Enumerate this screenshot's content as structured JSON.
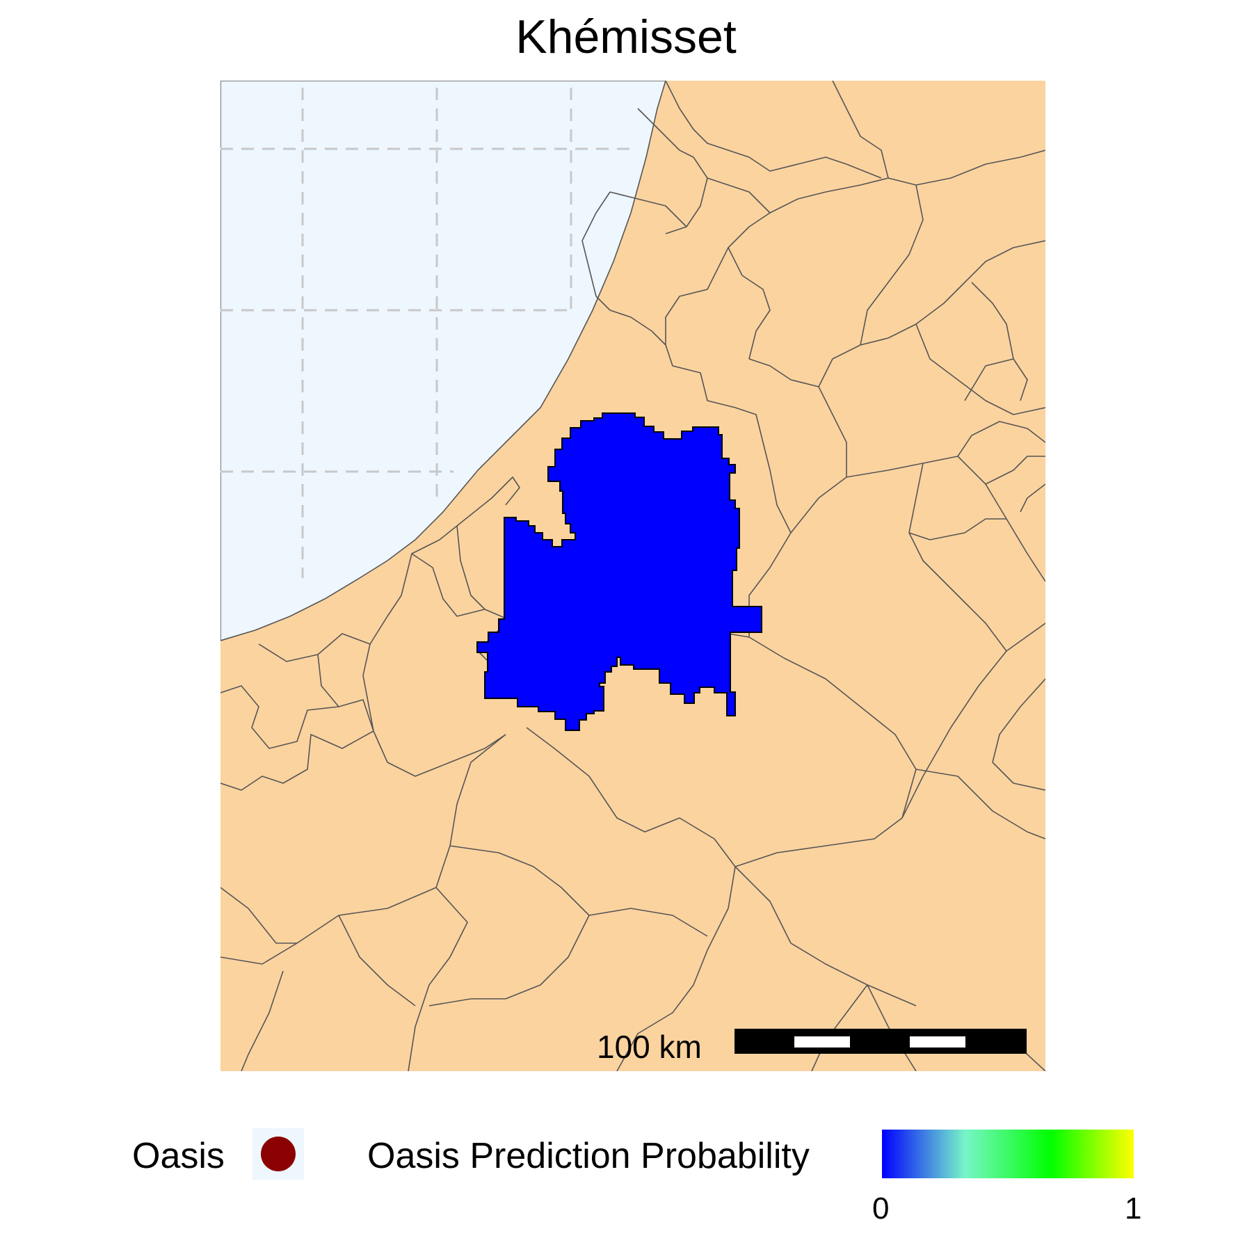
{
  "title": "Khémisset",
  "scale_bar": {
    "label": "100 km"
  },
  "legend": {
    "point_label": "Oasis",
    "point_color": "#8b0000",
    "point_key_background": "#eef6fe",
    "gradient_title": "Oasis Prediction Probability",
    "gradient_min": "0",
    "gradient_max": "1",
    "gradient_colors": [
      "#0000ff",
      "#78f5c8",
      "#00ff00",
      "#ffff00"
    ]
  },
  "map": {
    "sea_color": "#eef6fe",
    "land_color": "#fbd39f",
    "boundary_color": "#555555",
    "highlight_region": "Khémisset",
    "highlight_fill": "#0000ff",
    "highlight_probability": 0,
    "graticule": "dashed, sea only"
  }
}
